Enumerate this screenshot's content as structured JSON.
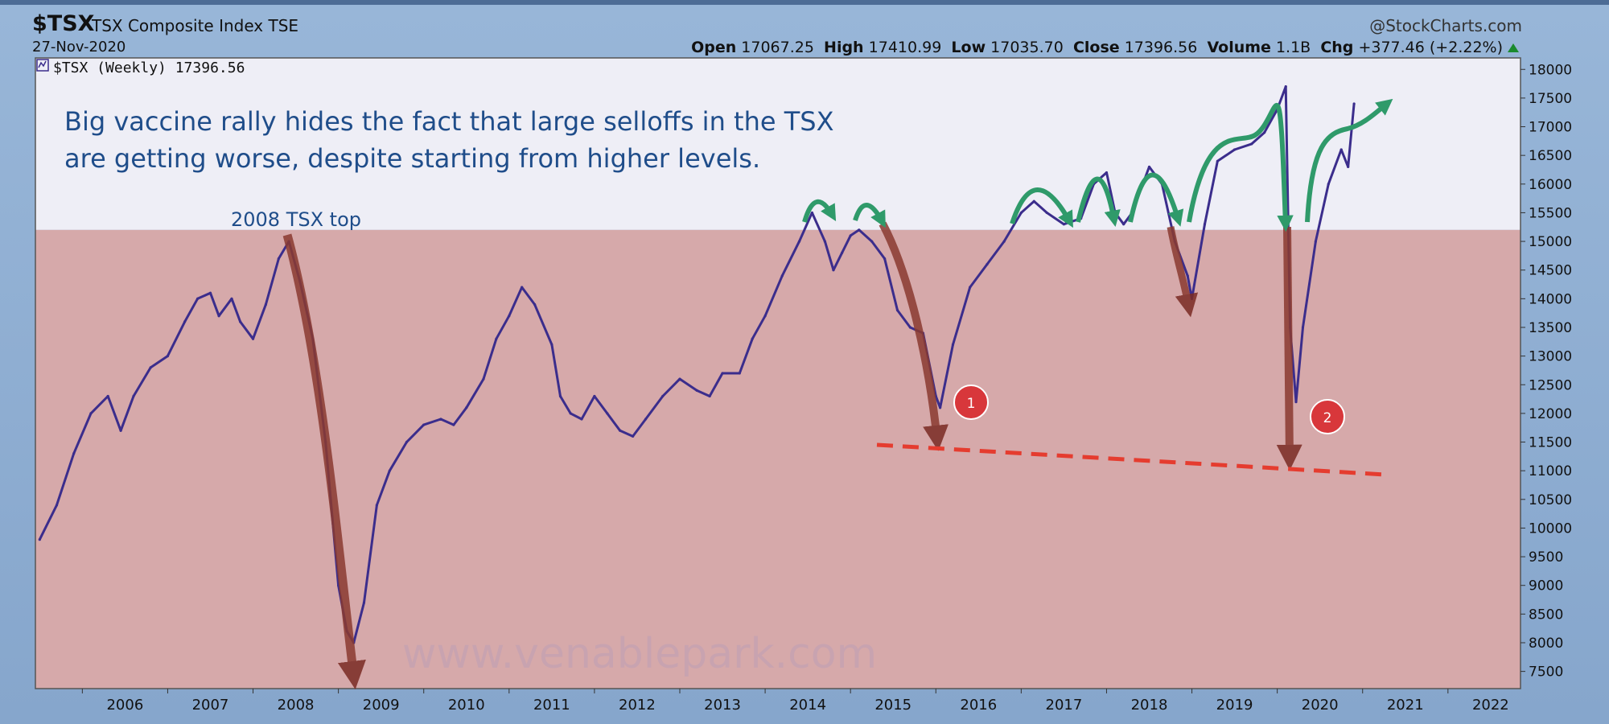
{
  "header": {
    "symbol": "$TSX",
    "name": "TSX Composite Index",
    "exchange": "TSE",
    "date": "27-Nov-2020",
    "credit": "@StockCharts.com",
    "open_label": "Open",
    "open": "17067.25",
    "high_label": "High",
    "high": "17410.99",
    "low_label": "Low",
    "low": "17035.70",
    "close_label": "Close",
    "close": "17396.56",
    "volume_label": "Volume",
    "volume": "1.1B",
    "chg_label": "Chg",
    "chg": "+377.46 (+2.22%)"
  },
  "chart_data": {
    "type": "line",
    "legend": "$TSX (Weekly) 17396.56",
    "title": "Big vaccine rally hides the fact that large selloffs in the TSX are getting worse, despite starting from higher levels.",
    "title_lines": [
      "Big vaccine rally hides the fact that large selloffs in the TSX",
      "are getting worse, despite starting from higher levels."
    ],
    "annotation_top": "2008 TSX top",
    "watermark": "www.venablepark.com",
    "xlim": [
      2005.45,
      2022.85
    ],
    "ylim": [
      7200,
      18200
    ],
    "x_ticks": [
      "2006",
      "2007",
      "2008",
      "2009",
      "2010",
      "2011",
      "2012",
      "2013",
      "2014",
      "2015",
      "2016",
      "2017",
      "2018",
      "2019",
      "2020",
      "2021",
      "2022"
    ],
    "y_ticks": [
      7500,
      8000,
      8500,
      9000,
      9500,
      10000,
      10500,
      11000,
      11500,
      12000,
      12500,
      13000,
      13500,
      14000,
      14500,
      15000,
      15500,
      16000,
      16500,
      17000,
      17500,
      18000
    ],
    "shaded_band_below": 15200,
    "series_color": "#3b2d8c",
    "series": [
      {
        "x": [
          2005.5,
          2005.7,
          2005.9,
          2006.1,
          2006.3,
          2006.45,
          2006.6,
          2006.8,
          2007.0,
          2007.2,
          2007.35,
          2007.5,
          2007.6,
          2007.75,
          2007.85,
          2008.0,
          2008.15,
          2008.3,
          2008.42,
          2008.55,
          2008.7,
          2008.85,
          2009.0,
          2009.1,
          2009.18,
          2009.3,
          2009.45,
          2009.6,
          2009.8,
          2010.0,
          2010.2,
          2010.35,
          2010.5,
          2010.7,
          2010.85,
          2011.0,
          2011.15,
          2011.3,
          2011.5,
          2011.6,
          2011.72,
          2011.85,
          2012.0,
          2012.15,
          2012.3,
          2012.45,
          2012.6,
          2012.8,
          2013.0,
          2013.2,
          2013.35,
          2013.5,
          2013.7,
          2013.85,
          2014.0,
          2014.2,
          2014.4,
          2014.55,
          2014.7,
          2014.8,
          2014.9,
          2015.0,
          2015.1,
          2015.25,
          2015.4,
          2015.55,
          2015.7,
          2015.85,
          2016.0,
          2016.05,
          2016.2,
          2016.4,
          2016.6,
          2016.8,
          2017.0,
          2017.15,
          2017.3,
          2017.5,
          2017.7,
          2017.85,
          2018.0,
          2018.1,
          2018.2,
          2018.3,
          2018.5,
          2018.65,
          2018.8,
          2018.95,
          2019.0,
          2019.15,
          2019.3,
          2019.5,
          2019.7,
          2019.85,
          2020.0,
          2020.1,
          2020.15,
          2020.22,
          2020.3,
          2020.45,
          2020.6,
          2020.75,
          2020.83,
          2020.9
        ],
        "y": [
          9800,
          10400,
          11300,
          12000,
          12300,
          11700,
          12300,
          12800,
          13000,
          13600,
          14000,
          14100,
          13700,
          14000,
          13600,
          13300,
          13900,
          14700,
          15000,
          14300,
          13300,
          11500,
          9000,
          8200,
          8000,
          8700,
          10400,
          11000,
          11500,
          11800,
          11900,
          11800,
          12100,
          12600,
          13300,
          13700,
          14200,
          13900,
          13200,
          12300,
          12000,
          11900,
          12300,
          12000,
          11700,
          11600,
          11900,
          12300,
          12600,
          12400,
          12300,
          12700,
          12700,
          13300,
          13700,
          14400,
          15000,
          15500,
          15000,
          14500,
          14800,
          15100,
          15200,
          15000,
          14700,
          13800,
          13500,
          13400,
          12300,
          12100,
          13200,
          14200,
          14600,
          15000,
          15500,
          15700,
          15500,
          15300,
          15400,
          16000,
          16200,
          15500,
          15300,
          15500,
          16300,
          16000,
          15000,
          14400,
          14000,
          15300,
          16400,
          16600,
          16700,
          16900,
          17300,
          17700,
          13500,
          12200,
          13500,
          15000,
          16000,
          16600,
          16300,
          17400
        ]
      }
    ],
    "callouts": [
      "1",
      "2"
    ]
  }
}
